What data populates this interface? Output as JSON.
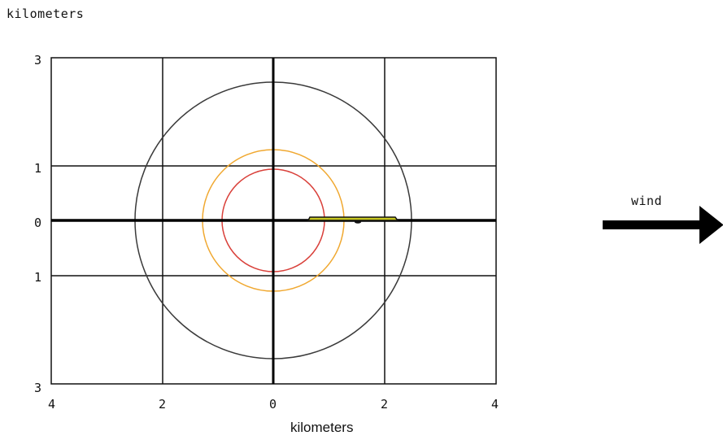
{
  "labels": {
    "y_axis_unit": "kilometers",
    "x_axis_unit": "kilometers",
    "wind": "wind"
  },
  "y_ticks": [
    "3",
    "1",
    "0",
    "1",
    "3"
  ],
  "x_ticks": [
    "4",
    "2",
    "0",
    "2",
    "4"
  ],
  "axis_range_km": {
    "x": [
      -4,
      4
    ],
    "y": [
      -3,
      3
    ]
  },
  "threat_zones": [
    {
      "name": "outer",
      "radius_km": 2.5,
      "color": "#3a3a3a"
    },
    {
      "name": "middle",
      "radius_km": 1.28,
      "color": "#f0a830"
    },
    {
      "name": "inner",
      "radius_km": 0.93,
      "color": "#d9403a"
    }
  ],
  "plume": {
    "x_start_km": 0.65,
    "x_end_km": 2.25,
    "color": "#c8c820"
  },
  "wind_direction": "east"
}
